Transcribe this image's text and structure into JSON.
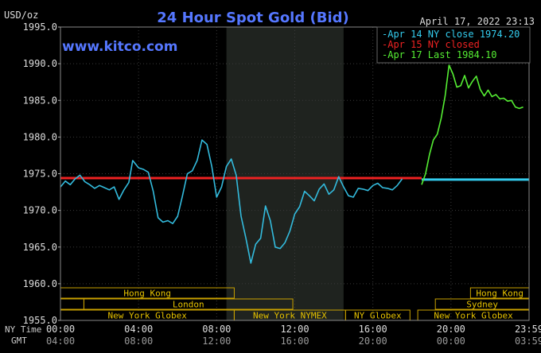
{
  "chart_data": {
    "type": "line",
    "title": "24 Hour Spot Gold (Bid)",
    "watermark": "www.kitco.com",
    "ylabel": "USD/oz",
    "timestamp": "April 17, 2022 23:13",
    "ylim": [
      1955,
      1995
    ],
    "yticks": [
      "1995.0",
      "1990.0",
      "1985.0",
      "1980.0",
      "1975.0",
      "1970.0",
      "1965.0",
      "1960.0",
      "1955.0"
    ],
    "xlim_hours": [
      0,
      24
    ],
    "nytime_label": "NY Time",
    "gmt_label": "GMT",
    "xticks_ny": [
      "00:00",
      "04:00",
      "08:00",
      "12:00",
      "16:00",
      "20:00",
      "23:59"
    ],
    "xticks_gmt": [
      "04:00",
      "08:00",
      "12:00",
      "16:00",
      "20:00",
      "00:00",
      "03:59"
    ],
    "legend": [
      {
        "text": "Apr 14 NY close 1974.20",
        "color": "#33ccee"
      },
      {
        "text": "Apr 15 NY closed",
        "color": "#ee2222"
      },
      {
        "text": "Apr 17 Last 1984.10",
        "color": "#55ee33"
      }
    ],
    "reference_lines": [
      {
        "name": "Apr 14 NY close",
        "value": 1974.2,
        "x_start": 18.5,
        "x_end": 24,
        "color": "#33ccee"
      },
      {
        "name": "Apr 15 NY closed",
        "value": 1974.4,
        "x_start": 0,
        "x_end": 18.5,
        "color": "#ee2222"
      }
    ],
    "highlight_band_hours": [
      8.5,
      14.5
    ],
    "series": [
      {
        "name": "Apr 14",
        "color": "#33bbdd",
        "x": [
          0,
          0.25,
          0.5,
          0.75,
          1,
          1.25,
          1.5,
          1.75,
          2,
          2.25,
          2.5,
          2.75,
          3,
          3.25,
          3.5,
          3.7,
          4,
          4.25,
          4.5,
          4.75,
          5,
          5.25,
          5.5,
          5.75,
          6,
          6.25,
          6.5,
          6.75,
          7,
          7.25,
          7.5,
          7.75,
          8,
          8.25,
          8.5,
          8.75,
          9,
          9.25,
          9.5,
          9.75,
          10,
          10.25,
          10.5,
          10.75,
          11,
          11.25,
          11.5,
          11.75,
          12,
          12.25,
          12.5,
          12.75,
          13,
          13.25,
          13.5,
          13.75,
          14,
          14.25,
          14.5,
          14.75,
          15,
          15.25,
          15.5,
          15.75,
          16,
          16.25,
          16.5,
          16.75,
          17,
          17.25,
          17.5
        ],
        "values": [
          1973.2,
          1974.0,
          1973.5,
          1974.3,
          1974.8,
          1973.9,
          1973.5,
          1973.0,
          1973.4,
          1973.1,
          1972.8,
          1973.2,
          1971.5,
          1972.8,
          1973.8,
          1976.8,
          1975.8,
          1975.6,
          1975.2,
          1972.6,
          1969.0,
          1968.4,
          1968.6,
          1968.2,
          1969.2,
          1972.0,
          1975.0,
          1975.4,
          1976.8,
          1979.6,
          1979.0,
          1976.0,
          1971.8,
          1973.2,
          1976.0,
          1977.0,
          1974.8,
          1969.2,
          1966.2,
          1962.8,
          1965.4,
          1966.2,
          1970.6,
          1968.6,
          1965.0,
          1964.8,
          1965.6,
          1967.2,
          1969.5,
          1970.5,
          1972.6,
          1972.0,
          1971.3,
          1972.9,
          1973.6,
          1972.2,
          1972.8,
          1974.6,
          1973.2,
          1972.0,
          1971.8,
          1973.0,
          1972.9,
          1972.7,
          1973.4,
          1973.7,
          1973.1,
          1973.0,
          1972.8,
          1973.4,
          1974.3
        ]
      },
      {
        "name": "Apr 17",
        "color": "#55ee33",
        "x": [
          18.5,
          18.7,
          18.9,
          19.1,
          19.3,
          19.5,
          19.7,
          19.9,
          20.1,
          20.3,
          20.5,
          20.7,
          20.9,
          21.1,
          21.3,
          21.5,
          21.7,
          21.9,
          22.1,
          22.3,
          22.5,
          22.7,
          22.9,
          23.1,
          23.3,
          23.5,
          23.7
        ],
        "values": [
          1973.5,
          1975.0,
          1977.6,
          1979.6,
          1980.4,
          1982.6,
          1985.6,
          1989.8,
          1988.6,
          1986.8,
          1987.0,
          1988.4,
          1986.7,
          1987.6,
          1988.3,
          1986.5,
          1985.6,
          1986.4,
          1985.5,
          1985.8,
          1985.2,
          1985.3,
          1984.9,
          1985.0,
          1984.1,
          1983.9,
          1984.1
        ]
      }
    ],
    "market_rows": [
      [
        {
          "label": "Hong Kong",
          "start": 0,
          "end": 8.9
        },
        {
          "label": "Hong Kong",
          "start": 21.0,
          "end": 24.0
        }
      ],
      [
        {
          "label": "",
          "start": 0,
          "end": 1.2
        },
        {
          "label": "London",
          "start": 1.2,
          "end": 11.9
        },
        {
          "label": "Sydney",
          "start": 19.2,
          "end": 24.0
        }
      ],
      [
        {
          "label": "New York Globex",
          "start": 0,
          "end": 8.9
        },
        {
          "label": "New York NYMEX",
          "start": 8.9,
          "end": 14.6
        },
        {
          "label": "NY Globex",
          "start": 14.6,
          "end": 17.9
        },
        {
          "label": "New York Globex",
          "start": 18.3,
          "end": 24.0
        }
      ]
    ]
  }
}
